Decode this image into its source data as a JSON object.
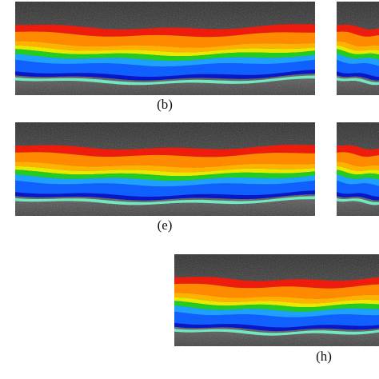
{
  "figure": {
    "captions": [
      "(b)",
      "(e)",
      "(h)"
    ]
  }
}
